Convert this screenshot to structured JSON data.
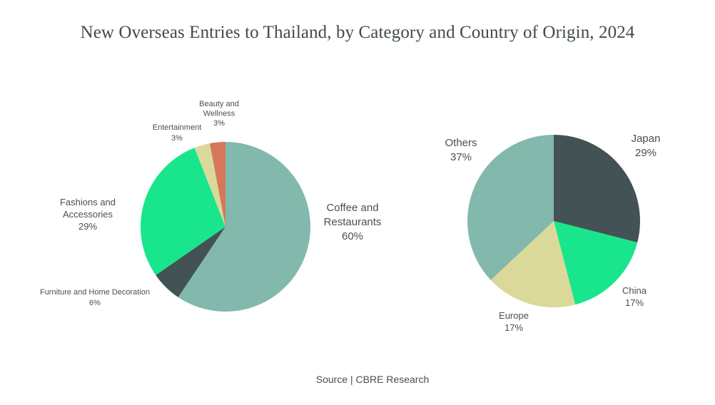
{
  "chart_title": "New Overseas Entries to Thailand, by Category and Country of Origin, 2024",
  "source": "Source | CBRE Research",
  "chart_data": [
    {
      "type": "pie",
      "title": "",
      "slices": [
        {
          "name_lines": [
            "Coffee and",
            "Restaurants"
          ],
          "value": 60,
          "label": "60%",
          "color": "#82b9ac"
        },
        {
          "name_lines": [
            "Furniture and Home Decoration"
          ],
          "value": 6,
          "label": "6%",
          "color": "#435254"
        },
        {
          "name_lines": [
            "Fashions and",
            "Accessories"
          ],
          "value": 29,
          "label": "29%",
          "color": "#19e68c"
        },
        {
          "name_lines": [
            "Entertainment"
          ],
          "value": 3,
          "label": "3%",
          "color": "#dbd99a"
        },
        {
          "name_lines": [
            "Beauty and",
            "Wellness"
          ],
          "value": 3,
          "label": "3%",
          "color": "#d6775b"
        }
      ]
    },
    {
      "type": "pie",
      "title": "",
      "slices": [
        {
          "name_lines": [
            "Japan"
          ],
          "value": 29,
          "label": "29%",
          "color": "#435254"
        },
        {
          "name_lines": [
            "China"
          ],
          "value": 17,
          "label": "17%",
          "color": "#19e68c"
        },
        {
          "name_lines": [
            "Europe"
          ],
          "value": 17,
          "label": "17%",
          "color": "#dbd99a"
        },
        {
          "name_lines": [
            "Others"
          ],
          "value": 37,
          "label": "37%",
          "color": "#82b9ac"
        }
      ]
    }
  ]
}
